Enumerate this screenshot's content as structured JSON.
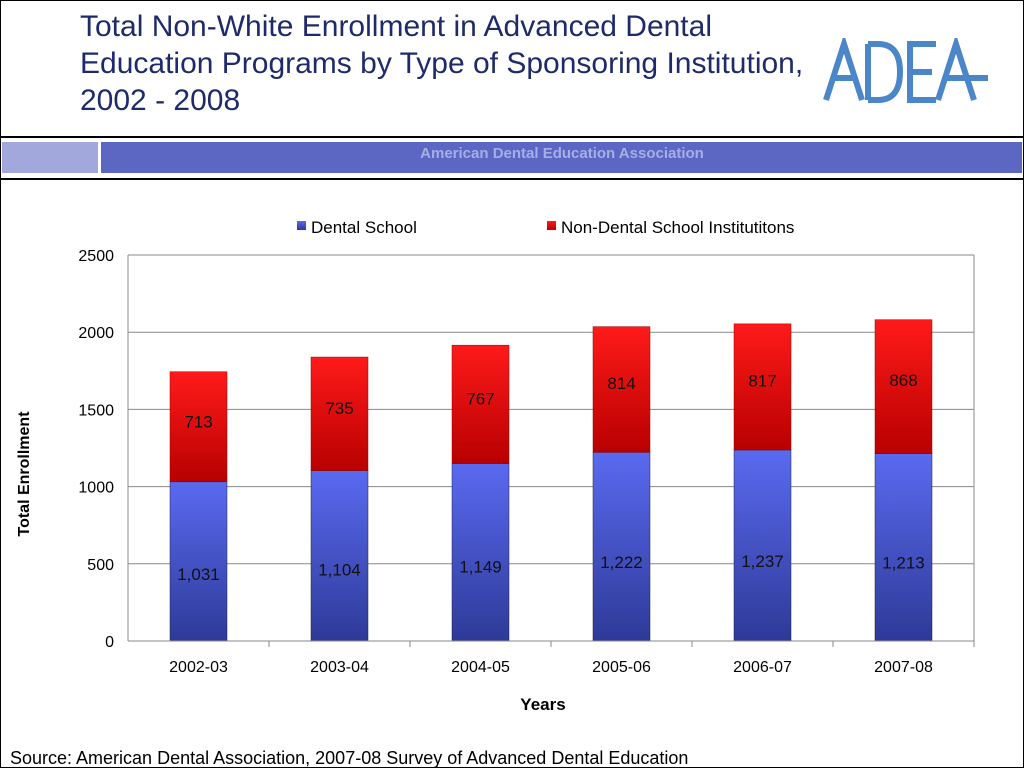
{
  "header": {
    "title": "Total Non-White Enrollment in Advanced  Dental Education Programs by Type of Sponsoring Institution, 2002 - 2008",
    "banner": "American Dental Education Association",
    "logo_text": "ADEA"
  },
  "footer": {
    "source": "Source: American Dental Association, 2007-08 Survey of Advanced Dental Education"
  },
  "colors": {
    "dental": "#4f5fe0",
    "non_dental": "#e81010",
    "title": "#1f2a6b",
    "banner": "#5c67c4",
    "logo": "#4a86c8"
  },
  "chart_data": {
    "type": "bar",
    "stacked": true,
    "categories": [
      "2002-03",
      "2003-04",
      "2004-05",
      "2005-06",
      "2006-07",
      "2007-08"
    ],
    "series": [
      {
        "name": "Dental School",
        "values": [
          1031,
          1104,
          1149,
          1222,
          1237,
          1213
        ],
        "labels": [
          "1,031",
          "1,104",
          "1,149",
          "1,222",
          "1,237",
          "1,213"
        ]
      },
      {
        "name": "Non-Dental School Institutitons",
        "values": [
          713,
          735,
          767,
          814,
          817,
          868
        ],
        "labels": [
          "713",
          "735",
          "767",
          "814",
          "817",
          "868"
        ]
      }
    ],
    "xlabel": "Years",
    "ylabel": "Total Enrollment",
    "ylim": [
      0,
      2500
    ],
    "yticks": [
      "0",
      "500",
      "1000",
      "1500",
      "2000",
      "2500"
    ],
    "grid": true,
    "legend": "top"
  }
}
